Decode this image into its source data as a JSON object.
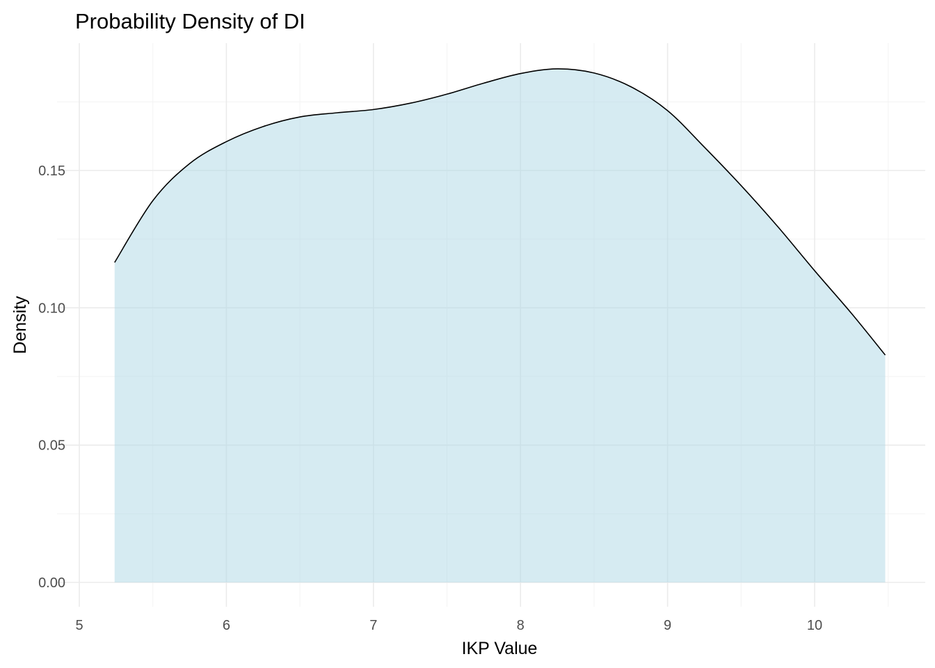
{
  "chart_data": {
    "type": "area",
    "title": "Probability Density of DI",
    "xlabel": "IKP Value",
    "ylabel": "Density",
    "xlim": [
      5,
      10.5
    ],
    "ylim": [
      0,
      0.19
    ],
    "x_ticks": [
      5,
      6,
      7,
      8,
      9,
      10
    ],
    "x_tick_labels": [
      "5",
      "6",
      "7",
      "8",
      "9",
      "10"
    ],
    "y_ticks": [
      0,
      0.05,
      0.1,
      0.15
    ],
    "y_tick_labels": [
      "0.00",
      "0.05",
      "0.10",
      "0.15"
    ],
    "grid": true,
    "legend": "none",
    "fill_color": "#add8e6",
    "fill_opacity": 0.5,
    "line_color": "#000000",
    "series": [
      {
        "x": [
          5.24,
          5.5,
          5.75,
          6.0,
          6.25,
          6.5,
          6.75,
          7.0,
          7.25,
          7.5,
          7.75,
          8.0,
          8.25,
          8.5,
          8.75,
          9.0,
          9.25,
          9.5,
          9.75,
          10.0,
          10.25,
          10.48
        ],
        "y": [
          0.1165,
          0.139,
          0.1525,
          0.1605,
          0.166,
          0.1695,
          0.171,
          0.1722,
          0.1745,
          0.1778,
          0.1818,
          0.1853,
          0.187,
          0.1855,
          0.1805,
          0.1718,
          0.1585,
          0.1445,
          0.1295,
          0.1135,
          0.098,
          0.0828
        ]
      }
    ]
  }
}
